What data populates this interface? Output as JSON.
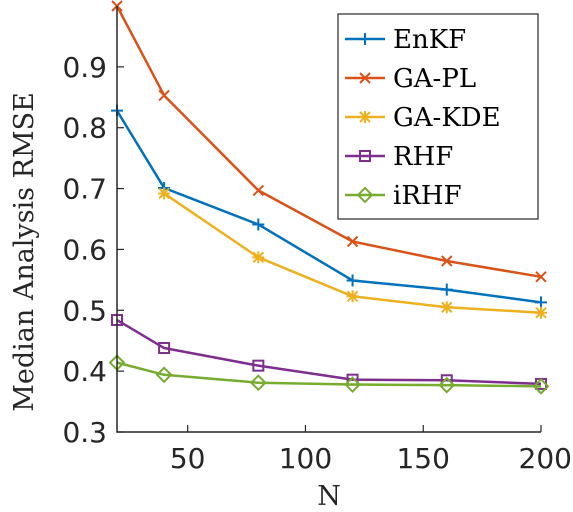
{
  "chart_data": {
    "type": "line",
    "title": "",
    "xlabel": "N",
    "ylabel": "Median Analysis RMSE",
    "xlim": [
      20,
      200
    ],
    "ylim": [
      0.3,
      1.0
    ],
    "xticks": [
      50,
      100,
      150,
      200
    ],
    "xtick_labels": [
      "50",
      "100",
      "150",
      "200"
    ],
    "yticks": [
      0.3,
      0.4,
      0.5,
      0.6,
      0.7,
      0.8,
      0.9
    ],
    "ytick_labels": [
      "0.3",
      "0.4",
      "0.5",
      "0.6",
      "0.7",
      "0.8",
      "0.9"
    ],
    "grid": false,
    "legend_position": "top-right",
    "x": [
      20,
      40,
      80,
      120,
      160,
      200
    ],
    "series": [
      {
        "name": "EnKF",
        "color": "#0072BD",
        "marker": "plus",
        "values": [
          0.828,
          0.701,
          0.641,
          0.549,
          0.534,
          0.513
        ]
      },
      {
        "name": "GA-PL",
        "color": "#D95319",
        "marker": "x",
        "values": [
          1.0,
          0.853,
          0.697,
          0.613,
          0.581,
          0.555
        ]
      },
      {
        "name": "GA-KDE",
        "color": "#EDB120",
        "marker": "star",
        "values": [
          null,
          0.692,
          0.587,
          0.523,
          0.505,
          0.496
        ]
      },
      {
        "name": "RHF",
        "color": "#7E2F8E",
        "marker": "square",
        "values": [
          0.484,
          0.438,
          0.409,
          0.386,
          0.385,
          0.379
        ]
      },
      {
        "name": "iRHF",
        "color": "#77AC30",
        "marker": "diamond",
        "values": [
          0.414,
          0.394,
          0.381,
          0.378,
          0.377,
          0.375
        ]
      }
    ]
  }
}
